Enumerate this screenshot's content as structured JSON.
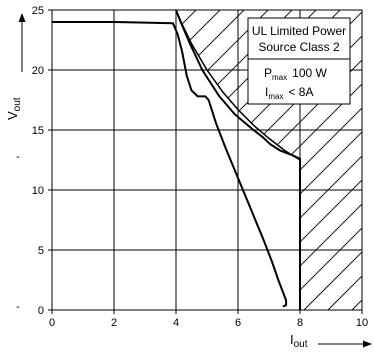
{
  "chart_data": {
    "type": "line",
    "xlabel": "I",
    "xlabel_sub": "out",
    "ylabel": "V",
    "ylabel_sub": "out",
    "xlim": [
      0,
      10
    ],
    "ylim": [
      0,
      25
    ],
    "x_ticks": [
      0,
      2,
      4,
      6,
      8,
      10
    ],
    "y_ticks": [
      0,
      5,
      10,
      15,
      20,
      25
    ],
    "x_tick_labels": [
      "0",
      "2",
      "4",
      "6",
      "8",
      "10"
    ],
    "y_tick_labels": [
      "0",
      "5",
      "10",
      "15",
      "20",
      "25"
    ],
    "grid": true,
    "hatched_region": "area right of and above the power limit boundary",
    "limit_boundary": {
      "x": [
        4.0,
        4.2,
        4.5,
        5.0,
        5.5,
        6.0,
        6.5,
        7.0,
        7.5,
        8.0,
        8.0
      ],
      "y": [
        25.0,
        23.8,
        22.2,
        20.0,
        18.2,
        16.7,
        15.4,
        14.3,
        13.3,
        12.5,
        0
      ]
    },
    "series": [
      {
        "x": [
          0.0,
          1.0,
          2.0,
          3.0,
          3.9,
          4.05,
          4.2,
          4.35,
          4.5,
          4.7,
          4.95,
          5.05,
          5.3,
          5.6,
          6.0,
          6.4,
          6.8,
          7.1,
          7.3,
          7.45,
          7.55,
          7.55,
          7.45
        ],
        "y": [
          24.0,
          24.0,
          24.0,
          23.95,
          23.9,
          23.0,
          21.5,
          19.5,
          18.3,
          17.8,
          17.8,
          17.5,
          15.5,
          13.5,
          11.0,
          8.5,
          6.0,
          4.0,
          2.5,
          1.5,
          0.8,
          0.4,
          0.3
        ]
      },
      {
        "x": [
          4.0,
          4.15,
          4.45,
          4.85,
          5.4,
          5.9,
          6.5,
          6.8,
          7.05,
          7.35,
          7.75,
          8.0,
          8.0
        ],
        "y": [
          25.0,
          24.0,
          22.2,
          20.0,
          17.8,
          16.3,
          15.0,
          14.4,
          13.8,
          13.3,
          12.9,
          12.6,
          0.0
        ]
      }
    ],
    "annotation_box": {
      "title_line1": "UL Limited Power",
      "title_line2": "Source Class 2",
      "pmax_symbol": "P",
      "pmax_sub": "max",
      "pmax_value": "100 W",
      "imax_symbol": "I",
      "imax_sub": "max",
      "imax_value": "<  8A"
    },
    "stray_marks": [
      "-",
      "-"
    ]
  }
}
